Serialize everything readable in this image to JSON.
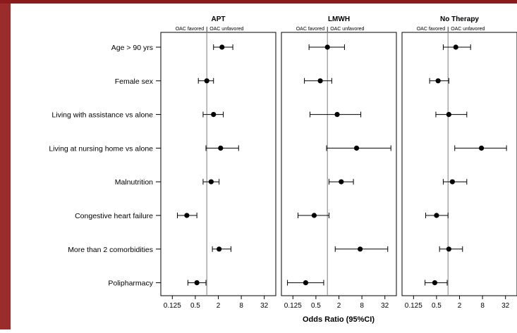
{
  "colors": {
    "accent_bar": "#8b1a1a",
    "left_bar": "#9b2c2c",
    "panel_border": "#000000",
    "reference_line": "#7f7f7f",
    "point": "#000000"
  },
  "chart_data": {
    "type": "forest",
    "xlabel": "Odds Ratio (95%CI)",
    "x_scale": "log2",
    "xlim": [
      0.0625,
      64
    ],
    "x_ticks": [
      0.125,
      0.5,
      2,
      8,
      32
    ],
    "x_tick_labels": [
      "0.125",
      "0.5",
      "2",
      "8",
      "32"
    ],
    "reference_value": 1,
    "direction_labels": {
      "left": "OAC favored",
      "right": "OAC unfavored"
    },
    "rows": [
      "Age > 90 yrs",
      "Female sex",
      "Living with assistance vs alone",
      "Living at nursing home vs alone",
      "Malnutrition",
      "Congestive heart failure",
      "More than 2 comorbidities",
      "Polipharmacy"
    ],
    "panels": [
      {
        "title": "APT",
        "estimates": [
          {
            "or": 2.5,
            "lo": 1.5,
            "hi": 4.8
          },
          {
            "or": 1.0,
            "lo": 0.6,
            "hi": 1.5
          },
          {
            "or": 1.5,
            "lo": 0.8,
            "hi": 2.7
          },
          {
            "or": 2.3,
            "lo": 0.95,
            "hi": 6.8
          },
          {
            "or": 1.3,
            "lo": 0.8,
            "hi": 2.1
          },
          {
            "or": 0.3,
            "lo": 0.17,
            "hi": 0.55
          },
          {
            "or": 2.1,
            "lo": 1.4,
            "hi": 4.3
          },
          {
            "or": 0.55,
            "lo": 0.32,
            "hi": 0.95
          }
        ]
      },
      {
        "title": "LMWH",
        "estimates": [
          {
            "or": 1.0,
            "lo": 0.33,
            "hi": 2.8
          },
          {
            "or": 0.65,
            "lo": 0.25,
            "hi": 1.3
          },
          {
            "or": 1.8,
            "lo": 0.35,
            "hi": 7.5
          },
          {
            "or": 5.8,
            "lo": 0.95,
            "hi": 46
          },
          {
            "or": 2.3,
            "lo": 1.1,
            "hi": 4.8
          },
          {
            "or": 0.45,
            "lo": 0.17,
            "hi": 1.1
          },
          {
            "or": 7.2,
            "lo": 1.6,
            "hi": 38
          },
          {
            "or": 0.27,
            "lo": 0.09,
            "hi": 0.8
          }
        ]
      },
      {
        "title": "No Therapy",
        "estimates": [
          {
            "or": 1.6,
            "lo": 0.75,
            "hi": 3.9
          },
          {
            "or": 0.55,
            "lo": 0.33,
            "hi": 1.05
          },
          {
            "or": 1.05,
            "lo": 0.48,
            "hi": 3.1
          },
          {
            "or": 7.5,
            "lo": 1.5,
            "hi": 34
          },
          {
            "or": 1.3,
            "lo": 0.75,
            "hi": 3.1
          },
          {
            "or": 0.5,
            "lo": 0.26,
            "hi": 1.0
          },
          {
            "or": 1.05,
            "lo": 0.6,
            "hi": 2.4
          },
          {
            "or": 0.45,
            "lo": 0.25,
            "hi": 0.95
          }
        ]
      }
    ]
  }
}
